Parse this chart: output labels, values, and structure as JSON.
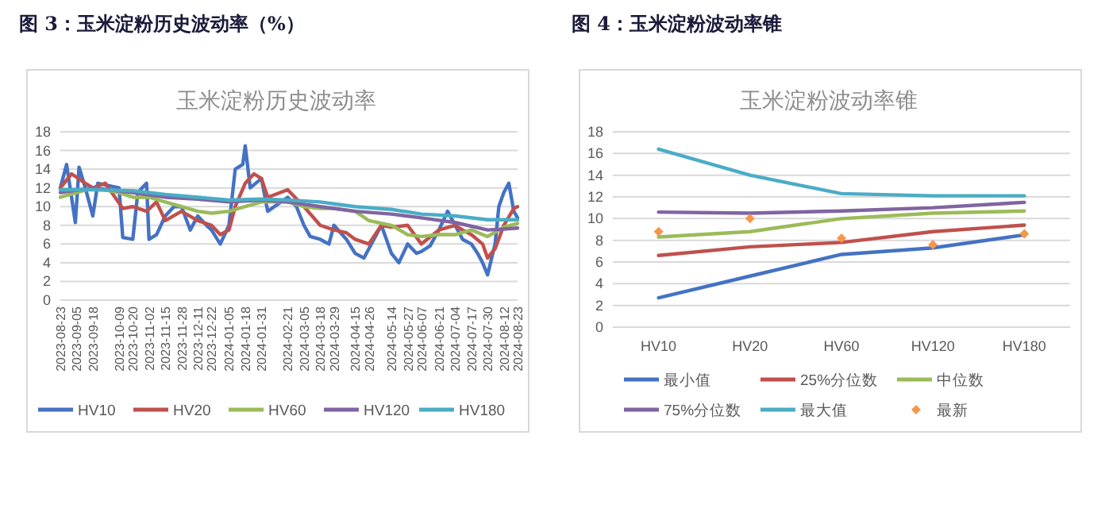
{
  "chart_data": [
    {
      "type": "line",
      "title": "图 3：玉米淀粉历史波动率（%）",
      "subtitle": "玉米淀粉历史波动率",
      "xlim": [
        "2023-08-23",
        "2024-08-23"
      ],
      "xticks": [
        "2023-08-23",
        "2023-09-05",
        "2023-09-18",
        "2023-10-09",
        "2023-10-20",
        "2023-11-02",
        "2023-11-15",
        "2023-11-28",
        "2023-12-11",
        "2023-12-22",
        "2024-01-05",
        "2024-01-18",
        "2024-01-31",
        "2024-02-21",
        "2024-03-05",
        "2024-03-18",
        "2024-03-29",
        "2024-04-15",
        "2024-04-26",
        "2024-05-14",
        "2024-05-27",
        "2024-06-07",
        "2024-06-21",
        "2024-07-04",
        "2024-07-17",
        "2024-07-30",
        "2024-08-12",
        "2024-08-23"
      ],
      "ylim": [
        0,
        18
      ],
      "yticks": [
        0,
        2,
        4,
        6,
        8,
        10,
        12,
        14,
        16,
        18
      ],
      "grid": "y",
      "legend": "bottom",
      "series": [
        {
          "name": "HV10",
          "color": "#4472c4",
          "x": [
            "2023-08-23",
            "2023-08-28",
            "2023-09-01",
            "2023-09-04",
            "2023-09-07",
            "2023-09-12",
            "2023-09-18",
            "2023-09-22",
            "2023-10-09",
            "2023-10-12",
            "2023-10-20",
            "2023-10-24",
            "2023-10-31",
            "2023-11-02",
            "2023-11-08",
            "2023-11-15",
            "2023-11-22",
            "2023-11-28",
            "2023-12-05",
            "2023-12-11",
            "2023-12-18",
            "2023-12-22",
            "2023-12-29",
            "2024-01-05",
            "2024-01-10",
            "2024-01-16",
            "2024-01-18",
            "2024-01-22",
            "2024-01-31",
            "2024-02-05",
            "2024-02-21",
            "2024-02-28",
            "2024-03-05",
            "2024-03-10",
            "2024-03-18",
            "2024-03-25",
            "2024-03-29",
            "2024-04-08",
            "2024-04-15",
            "2024-04-22",
            "2024-04-26",
            "2024-05-06",
            "2024-05-14",
            "2024-05-20",
            "2024-05-27",
            "2024-06-03",
            "2024-06-07",
            "2024-06-14",
            "2024-06-21",
            "2024-06-28",
            "2024-07-04",
            "2024-07-10",
            "2024-07-17",
            "2024-07-22",
            "2024-07-26",
            "2024-07-30",
            "2024-08-05",
            "2024-08-08",
            "2024-08-12",
            "2024-08-16",
            "2024-08-20",
            "2024-08-23"
          ],
          "values": [
            12,
            14.5,
            11,
            8.3,
            14.2,
            12,
            9,
            12.5,
            12,
            6.7,
            6.5,
            11.5,
            12.5,
            6.5,
            7,
            9,
            10,
            10,
            7.5,
            9,
            8,
            7.5,
            6,
            8,
            14,
            14.5,
            16.5,
            12,
            13,
            9.5,
            11,
            10,
            8,
            6.8,
            6.5,
            6,
            8,
            6.5,
            5,
            4.5,
            5.5,
            8,
            5,
            4,
            6,
            5,
            5.2,
            5.8,
            7.5,
            9.5,
            8,
            6.5,
            6,
            5,
            4,
            2.7,
            6,
            10,
            11.5,
            12.5,
            9.5,
            8.8
          ]
        },
        {
          "name": "HV20",
          "color": "#c0504d",
          "x": [
            "2023-08-23",
            "2023-09-01",
            "2023-09-12",
            "2023-09-18",
            "2023-09-28",
            "2023-10-12",
            "2023-10-20",
            "2023-10-31",
            "2023-11-08",
            "2023-11-15",
            "2023-11-28",
            "2023-12-11",
            "2023-12-22",
            "2023-12-29",
            "2024-01-05",
            "2024-01-10",
            "2024-01-18",
            "2024-01-25",
            "2024-01-31",
            "2024-02-05",
            "2024-02-21",
            "2024-03-05",
            "2024-03-18",
            "2024-03-29",
            "2024-04-08",
            "2024-04-15",
            "2024-04-26",
            "2024-05-06",
            "2024-05-14",
            "2024-05-27",
            "2024-06-07",
            "2024-06-21",
            "2024-07-04",
            "2024-07-10",
            "2024-07-17",
            "2024-07-26",
            "2024-07-30",
            "2024-08-05",
            "2024-08-12",
            "2024-08-20",
            "2024-08-23"
          ],
          "values": [
            12,
            13.5,
            12.5,
            12,
            12.5,
            9.8,
            10,
            9.5,
            10.5,
            8.5,
            9.5,
            8.5,
            8,
            7,
            7.5,
            10,
            12.5,
            13.5,
            13,
            11,
            11.8,
            10,
            8,
            7.5,
            7.2,
            6.5,
            6,
            8,
            7.8,
            8,
            6,
            7.5,
            8,
            7.5,
            7,
            6,
            4.5,
            5.5,
            8,
            9.8,
            10
          ]
        },
        {
          "name": "HV60",
          "color": "#9bbb59",
          "x": [
            "2023-08-23",
            "2023-09-05",
            "2023-09-18",
            "2023-10-09",
            "2023-10-20",
            "2023-11-02",
            "2023-11-15",
            "2023-11-28",
            "2023-12-11",
            "2023-12-22",
            "2024-01-05",
            "2024-01-18",
            "2024-01-31",
            "2024-02-21",
            "2024-03-05",
            "2024-03-18",
            "2024-03-29",
            "2024-04-15",
            "2024-04-26",
            "2024-05-14",
            "2024-05-27",
            "2024-06-07",
            "2024-06-21",
            "2024-07-04",
            "2024-07-17",
            "2024-07-30",
            "2024-08-12",
            "2024-08-23"
          ],
          "values": [
            11,
            11.5,
            12,
            11.5,
            11,
            11,
            10.5,
            10,
            9.5,
            9.3,
            9.5,
            10,
            10.5,
            10.5,
            10,
            9.8,
            9.8,
            9.5,
            8.5,
            8,
            7,
            6.8,
            7,
            7,
            7.5,
            6.8,
            7.8,
            8.2
          ]
        },
        {
          "name": "HV120",
          "color": "#8064a2",
          "x": [
            "2023-08-23",
            "2023-09-18",
            "2023-10-20",
            "2023-11-15",
            "2023-12-11",
            "2024-01-05",
            "2024-01-31",
            "2024-02-21",
            "2024-03-18",
            "2024-04-15",
            "2024-05-14",
            "2024-06-07",
            "2024-07-04",
            "2024-07-30",
            "2024-08-12",
            "2024-08-23"
          ],
          "values": [
            11.5,
            12,
            11.5,
            11,
            10.8,
            10.5,
            10.7,
            10.5,
            10,
            9.5,
            9.2,
            8.8,
            8.3,
            7.5,
            7.6,
            7.7
          ]
        },
        {
          "name": "HV180",
          "color": "#4bacc6",
          "x": [
            "2023-08-23",
            "2023-09-18",
            "2023-10-20",
            "2023-11-15",
            "2023-12-11",
            "2024-01-05",
            "2024-01-31",
            "2024-02-21",
            "2024-03-18",
            "2024-04-15",
            "2024-05-14",
            "2024-06-07",
            "2024-07-04",
            "2024-07-30",
            "2024-08-12",
            "2024-08-23"
          ],
          "values": [
            11.8,
            11.8,
            11.7,
            11.3,
            11,
            10.7,
            10.8,
            10.7,
            10.5,
            10,
            9.7,
            9.2,
            9,
            8.6,
            8.6,
            8.6
          ]
        }
      ]
    },
    {
      "type": "line",
      "title": "图 4：玉米淀粉波动率锥",
      "subtitle": "玉米淀粉波动率锥",
      "categories": [
        "HV10",
        "HV20",
        "HV60",
        "HV120",
        "HV180"
      ],
      "ylim": [
        0,
        18
      ],
      "yticks": [
        0,
        2,
        4,
        6,
        8,
        10,
        12,
        14,
        16,
        18
      ],
      "grid": "y",
      "legend": "bottom",
      "series": [
        {
          "name": "最小值",
          "color": "#4472c4",
          "values": [
            2.7,
            4.7,
            6.7,
            7.3,
            8.5
          ]
        },
        {
          "name": "25%分位数",
          "color": "#c0504d",
          "values": [
            6.6,
            7.4,
            7.8,
            8.8,
            9.4
          ]
        },
        {
          "name": "中位数",
          "color": "#9bbb59",
          "values": [
            8.3,
            8.8,
            10,
            10.5,
            10.7
          ]
        },
        {
          "name": "75%分位数",
          "color": "#8064a2",
          "values": [
            10.6,
            10.5,
            10.7,
            11,
            11.5
          ]
        },
        {
          "name": "最大值",
          "color": "#4bacc6",
          "values": [
            16.4,
            14,
            12.3,
            12.1,
            12.1
          ]
        },
        {
          "name": "最新",
          "color": "#f79646",
          "type": "scatter",
          "marker": "diamond",
          "values": [
            8.8,
            10,
            8.2,
            7.6,
            8.6
          ]
        }
      ]
    }
  ]
}
